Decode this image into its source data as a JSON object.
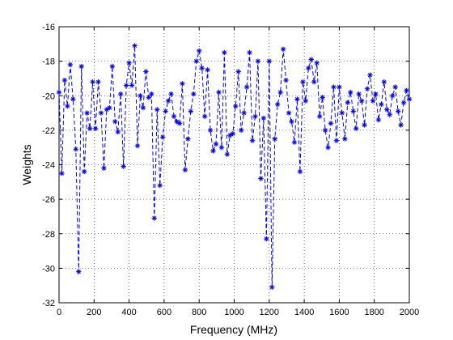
{
  "chart_data": {
    "type": "line",
    "title": "",
    "xlabel": "Frequency (MHz)",
    "ylabel": "Weights",
    "xlim": [
      0,
      2000
    ],
    "ylim": [
      -32,
      -16
    ],
    "xticks": [
      0,
      200,
      400,
      600,
      800,
      1000,
      1200,
      1400,
      1600,
      1800,
      2000
    ],
    "yticks": [
      -32,
      -30,
      -28,
      -26,
      -24,
      -22,
      -20,
      -18,
      -16
    ],
    "grid": true,
    "line_style": "dashed",
    "marker": "asterisk",
    "color": "#0000ff",
    "series": [
      {
        "x": [
          0,
          16,
          32,
          48,
          64,
          80,
          96,
          112,
          128,
          144,
          160,
          176,
          192,
          208,
          224,
          240,
          256,
          272,
          288,
          304,
          320,
          336,
          352,
          368,
          384,
          400,
          416,
          432,
          448,
          464,
          480,
          496,
          512,
          528,
          544,
          560,
          576,
          592,
          608,
          624,
          640,
          656,
          672,
          688,
          704,
          720,
          736,
          752,
          768,
          784,
          800,
          816,
          832,
          848,
          864,
          880,
          896,
          912,
          928,
          944,
          960,
          976,
          992,
          1008,
          1024,
          1040,
          1056,
          1072,
          1088,
          1104,
          1120,
          1136,
          1152,
          1168,
          1184,
          1200,
          1216,
          1232,
          1248,
          1264,
          1280,
          1296,
          1312,
          1328,
          1344,
          1360,
          1376,
          1392,
          1408,
          1424,
          1440,
          1456,
          1472,
          1488,
          1504,
          1520,
          1536,
          1552,
          1568,
          1584,
          1600,
          1616,
          1632,
          1648,
          1664,
          1680,
          1696,
          1712,
          1728,
          1744,
          1760,
          1776,
          1792,
          1808,
          1824,
          1840,
          1856,
          1872,
          1888,
          1904,
          1920,
          1936,
          1952,
          1968,
          1984,
          2000
        ],
        "y": [
          -19.8,
          -24.5,
          -19.1,
          -20.6,
          -18.2,
          -20.2,
          -23.1,
          -30.2,
          -18.3,
          -24.4,
          -21.0,
          -21.9,
          -19.2,
          -21.9,
          -19.2,
          -21.0,
          -24.2,
          -20.8,
          -20.7,
          -18.3,
          -21.5,
          -22.1,
          -19.9,
          -24.1,
          -19.4,
          -18.1,
          -19.4,
          -17.1,
          -22.9,
          -20.0,
          -20.7,
          -18.6,
          -20.1,
          -19.9,
          -27.1,
          -20.8,
          -25.2,
          -22.4,
          -20.9,
          -20.3,
          -19.9,
          -21.2,
          -21.5,
          -21.6,
          -19.3,
          -24.3,
          -22.5,
          -20.9,
          -19.9,
          -18.0,
          -17.4,
          -18.4,
          -21.2,
          -18.5,
          -22.0,
          -23.2,
          -22.8,
          -19.8,
          -23.0,
          -17.5,
          -23.4,
          -22.3,
          -22.2,
          -20.6,
          -18.6,
          -22.0,
          -21.0,
          -19.5,
          -17.5,
          -22.6,
          -21.2,
          -18.0,
          -24.8,
          -21.3,
          -28.3,
          -18.0,
          -31.1,
          -22.5,
          -20.5,
          -19.8,
          -17.3,
          -19.1,
          -21.0,
          -21.5,
          -22.7,
          -20.2,
          -24.4,
          -19.2,
          -20.3,
          -18.4,
          -17.9,
          -19.2,
          -18.1,
          -21.2,
          -20.1,
          -22.0,
          -23.0,
          -21.6,
          -19.5,
          -22.6,
          -19.5,
          -21.0,
          -22.5,
          -20.4,
          -19.8,
          -20.9,
          -21.9,
          -19.9,
          -20.3,
          -21.7,
          -19.6,
          -18.8,
          -20.3,
          -19.9,
          -21.4,
          -20.5,
          -19.2,
          -20.8,
          -21.1,
          -20.0,
          -19.5,
          -20.9,
          -21.7,
          -20.4,
          -19.7,
          -20.2
        ]
      }
    ]
  }
}
